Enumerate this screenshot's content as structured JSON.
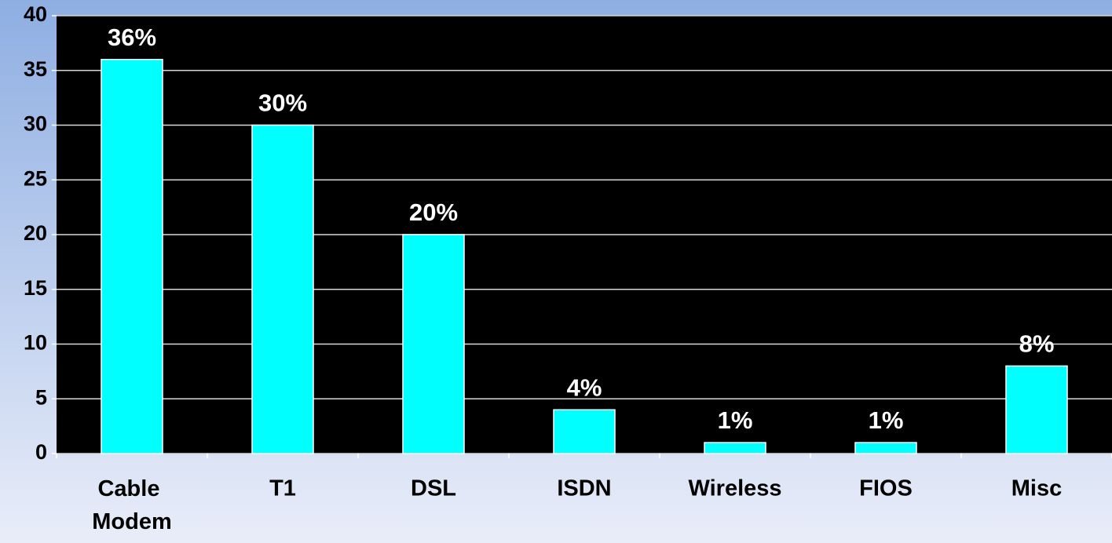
{
  "chart_data": {
    "type": "bar",
    "categories": [
      "Cable Modem",
      "T1",
      "DSL",
      "ISDN",
      "Wireless",
      "FIOS",
      "Misc"
    ],
    "values": [
      36,
      30,
      20,
      4,
      1,
      1,
      8
    ],
    "value_labels": [
      "36%",
      "30%",
      "20%",
      "4%",
      "1%",
      "1%",
      "8%"
    ],
    "color": "#00ffff",
    "ylim": [
      0,
      40
    ],
    "yticks": [
      0,
      5,
      10,
      15,
      20,
      25,
      30,
      35,
      40
    ],
    "grid": true
  }
}
